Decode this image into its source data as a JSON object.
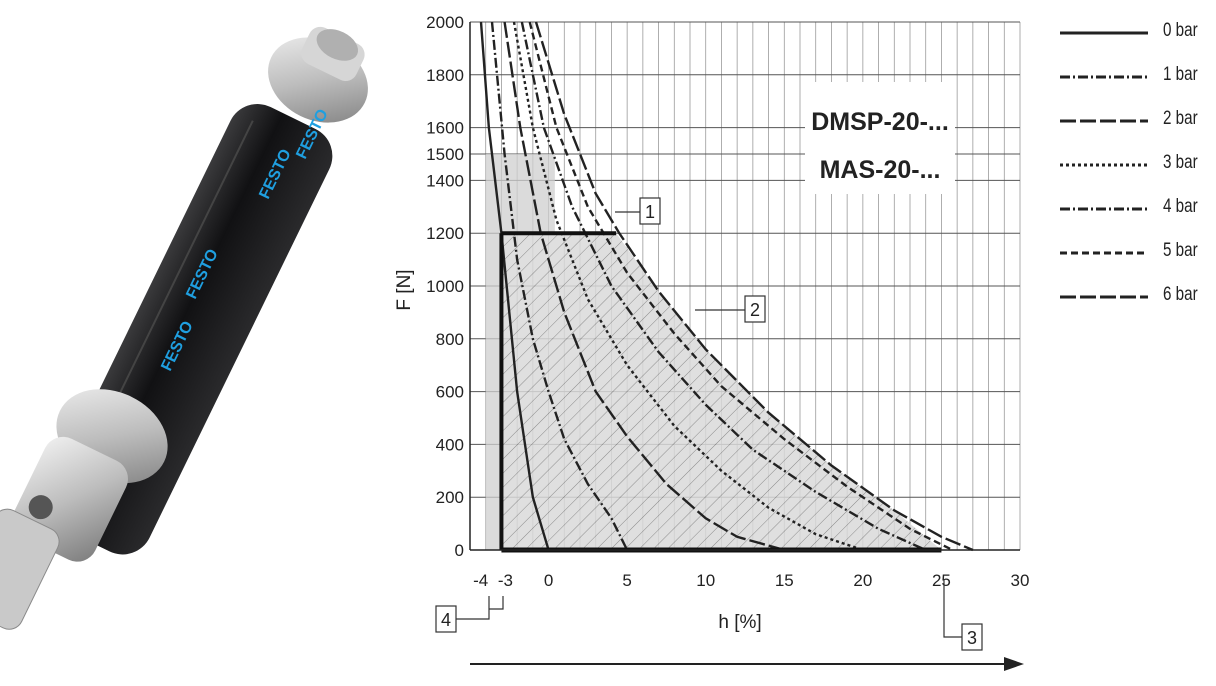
{
  "product_image": {
    "brand_text": "FESTO",
    "colors": {
      "tube": "#1d1d1f",
      "fitting": "#c8c8c8",
      "brand": "#1f9fe0"
    }
  },
  "chart_data": {
    "type": "line",
    "title_lines": [
      "DMSP-20-...",
      "MAS-20-..."
    ],
    "xlabel": "h [%]",
    "ylabel": "F [N]",
    "xlim": [
      -5,
      30
    ],
    "ylim": [
      0,
      2000
    ],
    "x_ticks": [
      -4,
      -3,
      0,
      5,
      10,
      15,
      20,
      25,
      30
    ],
    "x_tick_labels": [
      "-4",
      "-3",
      "0",
      "5",
      "10",
      "15",
      "20",
      "25",
      "30"
    ],
    "y_ticks": [
      0,
      200,
      400,
      600,
      800,
      1000,
      1200,
      1400,
      1500,
      1600,
      1800,
      2000
    ],
    "y_tick_labels": [
      "0",
      "200",
      "400",
      "600",
      "800",
      "1000",
      "1200",
      "1400",
      "1500",
      "1600",
      "1800",
      "2000"
    ],
    "grid": true,
    "legend_position": "right",
    "series": [
      {
        "name": "0 bar",
        "dash": "solid",
        "points": [
          [
            -4.3,
            2000
          ],
          [
            -3.8,
            1600
          ],
          [
            -3,
            1200
          ],
          [
            -2.5,
            900
          ],
          [
            -2,
            600
          ],
          [
            -1.5,
            400
          ],
          [
            -1,
            200
          ],
          [
            -0.3,
            60
          ],
          [
            0,
            0
          ]
        ]
      },
      {
        "name": "1 bar",
        "dash": "dashdot",
        "points": [
          [
            -3.6,
            2000
          ],
          [
            -2.8,
            1500
          ],
          [
            -2,
            1100
          ],
          [
            -1,
            800
          ],
          [
            0,
            600
          ],
          [
            1,
            420
          ],
          [
            2.5,
            250
          ],
          [
            4,
            120
          ],
          [
            5,
            0
          ]
        ]
      },
      {
        "name": "2 bar",
        "dash": "longdash",
        "points": [
          [
            -2.8,
            2000
          ],
          [
            -1.8,
            1600
          ],
          [
            -0.5,
            1200
          ],
          [
            1,
            900
          ],
          [
            3,
            600
          ],
          [
            5,
            430
          ],
          [
            7.5,
            250
          ],
          [
            10,
            120
          ],
          [
            12,
            50
          ],
          [
            15,
            0
          ]
        ]
      },
      {
        "name": "3 bar",
        "dash": "dotted",
        "points": [
          [
            -2.2,
            2000
          ],
          [
            -1,
            1600
          ],
          [
            0.5,
            1250
          ],
          [
            2.5,
            950
          ],
          [
            5,
            700
          ],
          [
            8,
            470
          ],
          [
            11,
            300
          ],
          [
            14,
            160
          ],
          [
            17,
            60
          ],
          [
            20,
            0
          ]
        ]
      },
      {
        "name": "4 bar",
        "dash": "dashdot",
        "points": [
          [
            -1.7,
            2000
          ],
          [
            -0.3,
            1600
          ],
          [
            1.5,
            1300
          ],
          [
            4,
            1000
          ],
          [
            7,
            750
          ],
          [
            10,
            550
          ],
          [
            13,
            380
          ],
          [
            17,
            220
          ],
          [
            21,
            80
          ],
          [
            24,
            0
          ]
        ]
      },
      {
        "name": "5 bar",
        "dash": "dashed",
        "points": [
          [
            -1.2,
            2000
          ],
          [
            0.5,
            1600
          ],
          [
            2.5,
            1300
          ],
          [
            5,
            1050
          ],
          [
            8,
            820
          ],
          [
            11,
            620
          ],
          [
            15,
            420
          ],
          [
            19,
            240
          ],
          [
            23,
            80
          ],
          [
            25.7,
            0
          ]
        ]
      },
      {
        "name": "6 bar",
        "dash": "longdash",
        "points": [
          [
            -0.8,
            2000
          ],
          [
            1,
            1650
          ],
          [
            3,
            1350
          ],
          [
            4.5,
            1200
          ],
          [
            7,
            980
          ],
          [
            10,
            760
          ],
          [
            14,
            520
          ],
          [
            18,
            320
          ],
          [
            22,
            150
          ],
          [
            25,
            50
          ],
          [
            27,
            0
          ]
        ]
      }
    ],
    "operating_range": {
      "description": "shaded/hatched region",
      "boundary": [
        [
          -3,
          0
        ],
        [
          -3,
          1200
        ],
        [
          4.3,
          1200
        ],
        [
          7,
          980
        ],
        [
          10,
          760
        ],
        [
          14,
          520
        ],
        [
          18,
          320
        ],
        [
          22,
          150
        ],
        [
          25,
          0
        ]
      ]
    },
    "preload_region": {
      "boundary": [
        [
          -4,
          0
        ],
        [
          -4,
          1500
        ],
        [
          0.4,
          1500
        ],
        [
          0.4,
          1200
        ],
        [
          -3,
          1200
        ],
        [
          -3,
          0
        ]
      ]
    },
    "callouts": [
      {
        "label": "1",
        "x": 3.2,
        "y": 1300
      },
      {
        "label": "2",
        "x": 8.5,
        "y": 900
      },
      {
        "label": "3",
        "x": 25,
        "y": 0
      },
      {
        "label": "4",
        "x": -4,
        "y": 0
      }
    ]
  }
}
